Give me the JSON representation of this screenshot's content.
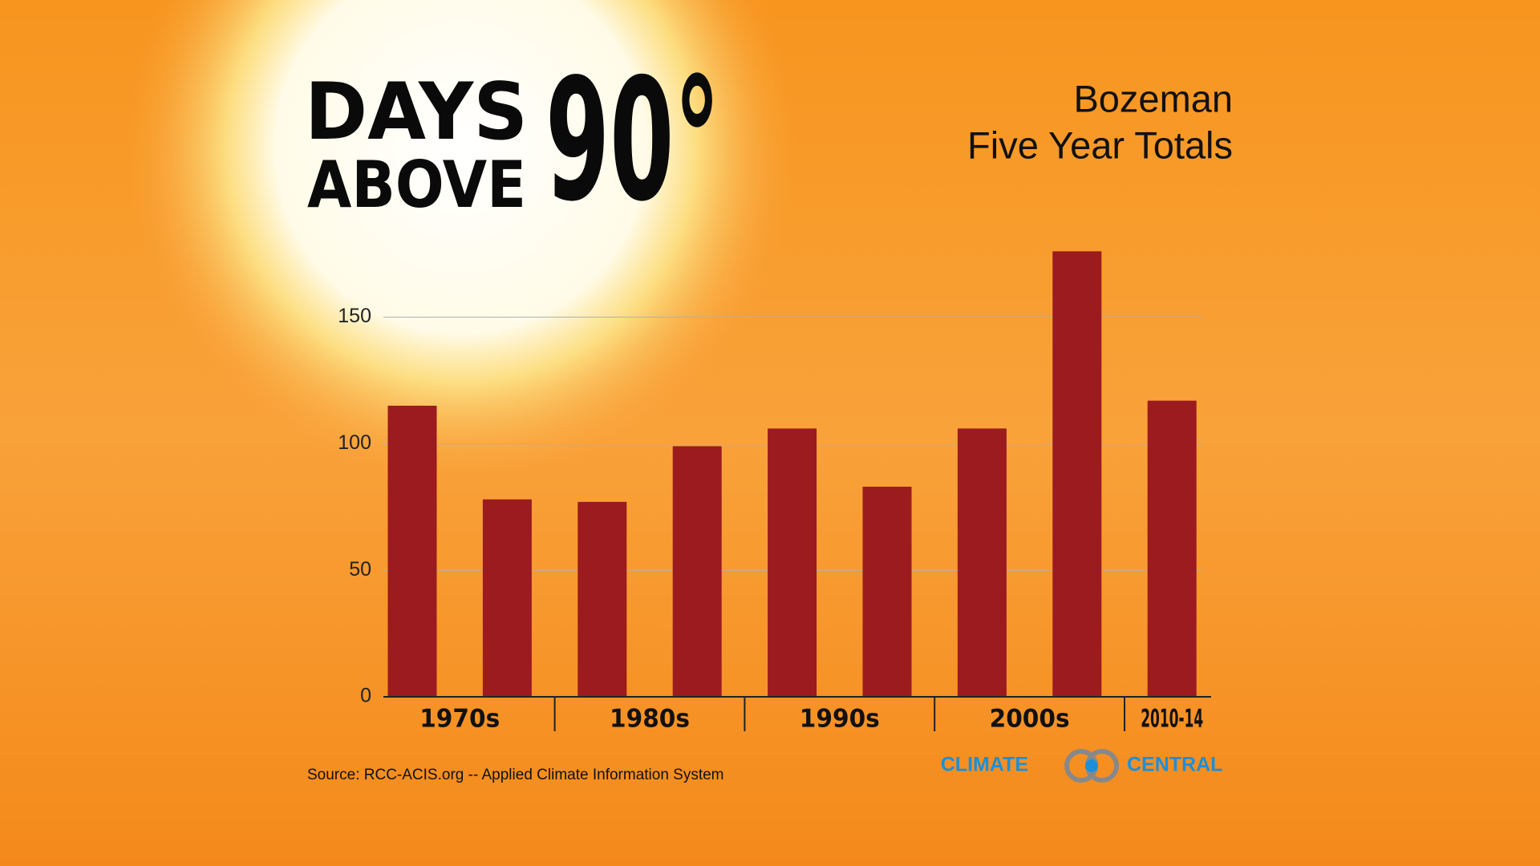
{
  "chart_data": {
    "type": "bar",
    "title_lines": [
      "DAYS",
      "ABOVE"
    ],
    "title_number": "90°",
    "subtitle_lines": [
      "Bozeman",
      "Five Year Totals"
    ],
    "categories": [
      "1970s",
      null,
      "1980s",
      null,
      "1990s",
      null,
      "2000s",
      null,
      "2010-14"
    ],
    "values": [
      115,
      78,
      77,
      99,
      106,
      83,
      106,
      176,
      117
    ],
    "color": "#9b1b1e",
    "ylim": [
      0,
      180
    ],
    "yticks": [
      0,
      50,
      100,
      150
    ],
    "grid": true
  },
  "source": "Source: RCC-ACIS.org -- Applied Climate Information System",
  "logo": {
    "left": "CLIMATE",
    "right": "CENTRAL"
  }
}
